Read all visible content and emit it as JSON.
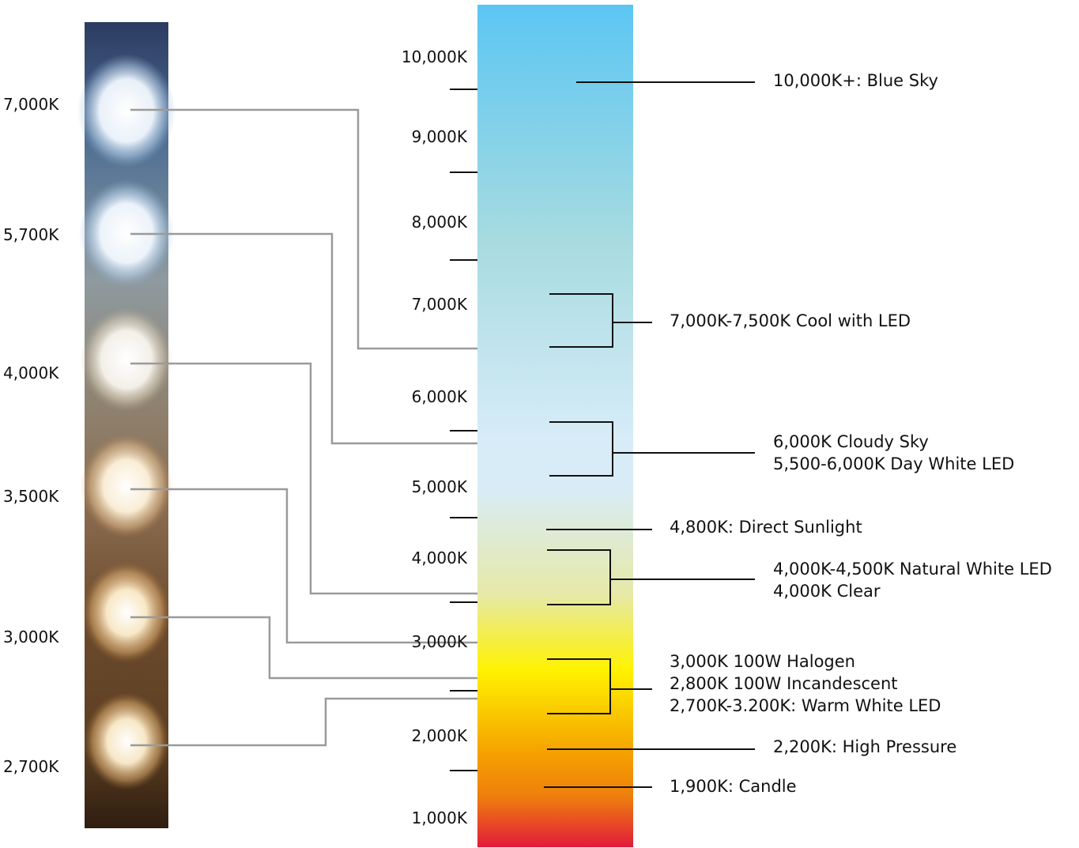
{
  "left_strip": {
    "labels": [
      "7,000K",
      "5,700K",
      "4,000K",
      "3,500K",
      "3,000K",
      "2,700K"
    ]
  },
  "scale": {
    "labels": [
      "10,000K",
      "9,000K",
      "8,000K",
      "7,000K",
      "6,000K",
      "5,000K",
      "4,000K",
      "3,000K",
      "2,000K",
      "1,000K"
    ],
    "gradient_colors": [
      "#5bc6f3",
      "#a7dbe0",
      "#d8ecf8",
      "#e6e9a8",
      "#fff200",
      "#f5a000",
      "#e21b3c"
    ]
  },
  "descriptions": {
    "blue_sky": [
      "10,000K+: Blue Sky"
    ],
    "cool_led": [
      "7,000K-7,500K Cool with LED"
    ],
    "cloudy_sky": [
      "6,000K Cloudy Sky",
      "5,500-6,000K Day White LED"
    ],
    "direct_sunlight": [
      "4,800K: Direct Sunlight"
    ],
    "natural_white": [
      "4,000K-4,500K Natural White LED",
      "4,000K Clear"
    ],
    "warm_white": [
      "3,000K 100W Halogen",
      "2,800K 100W Incandescent",
      "2,700K-3.200K: Warm White LED"
    ],
    "high_pressure": [
      "2,200K: High Pressure"
    ],
    "candle": [
      "1,900K: Candle"
    ]
  }
}
